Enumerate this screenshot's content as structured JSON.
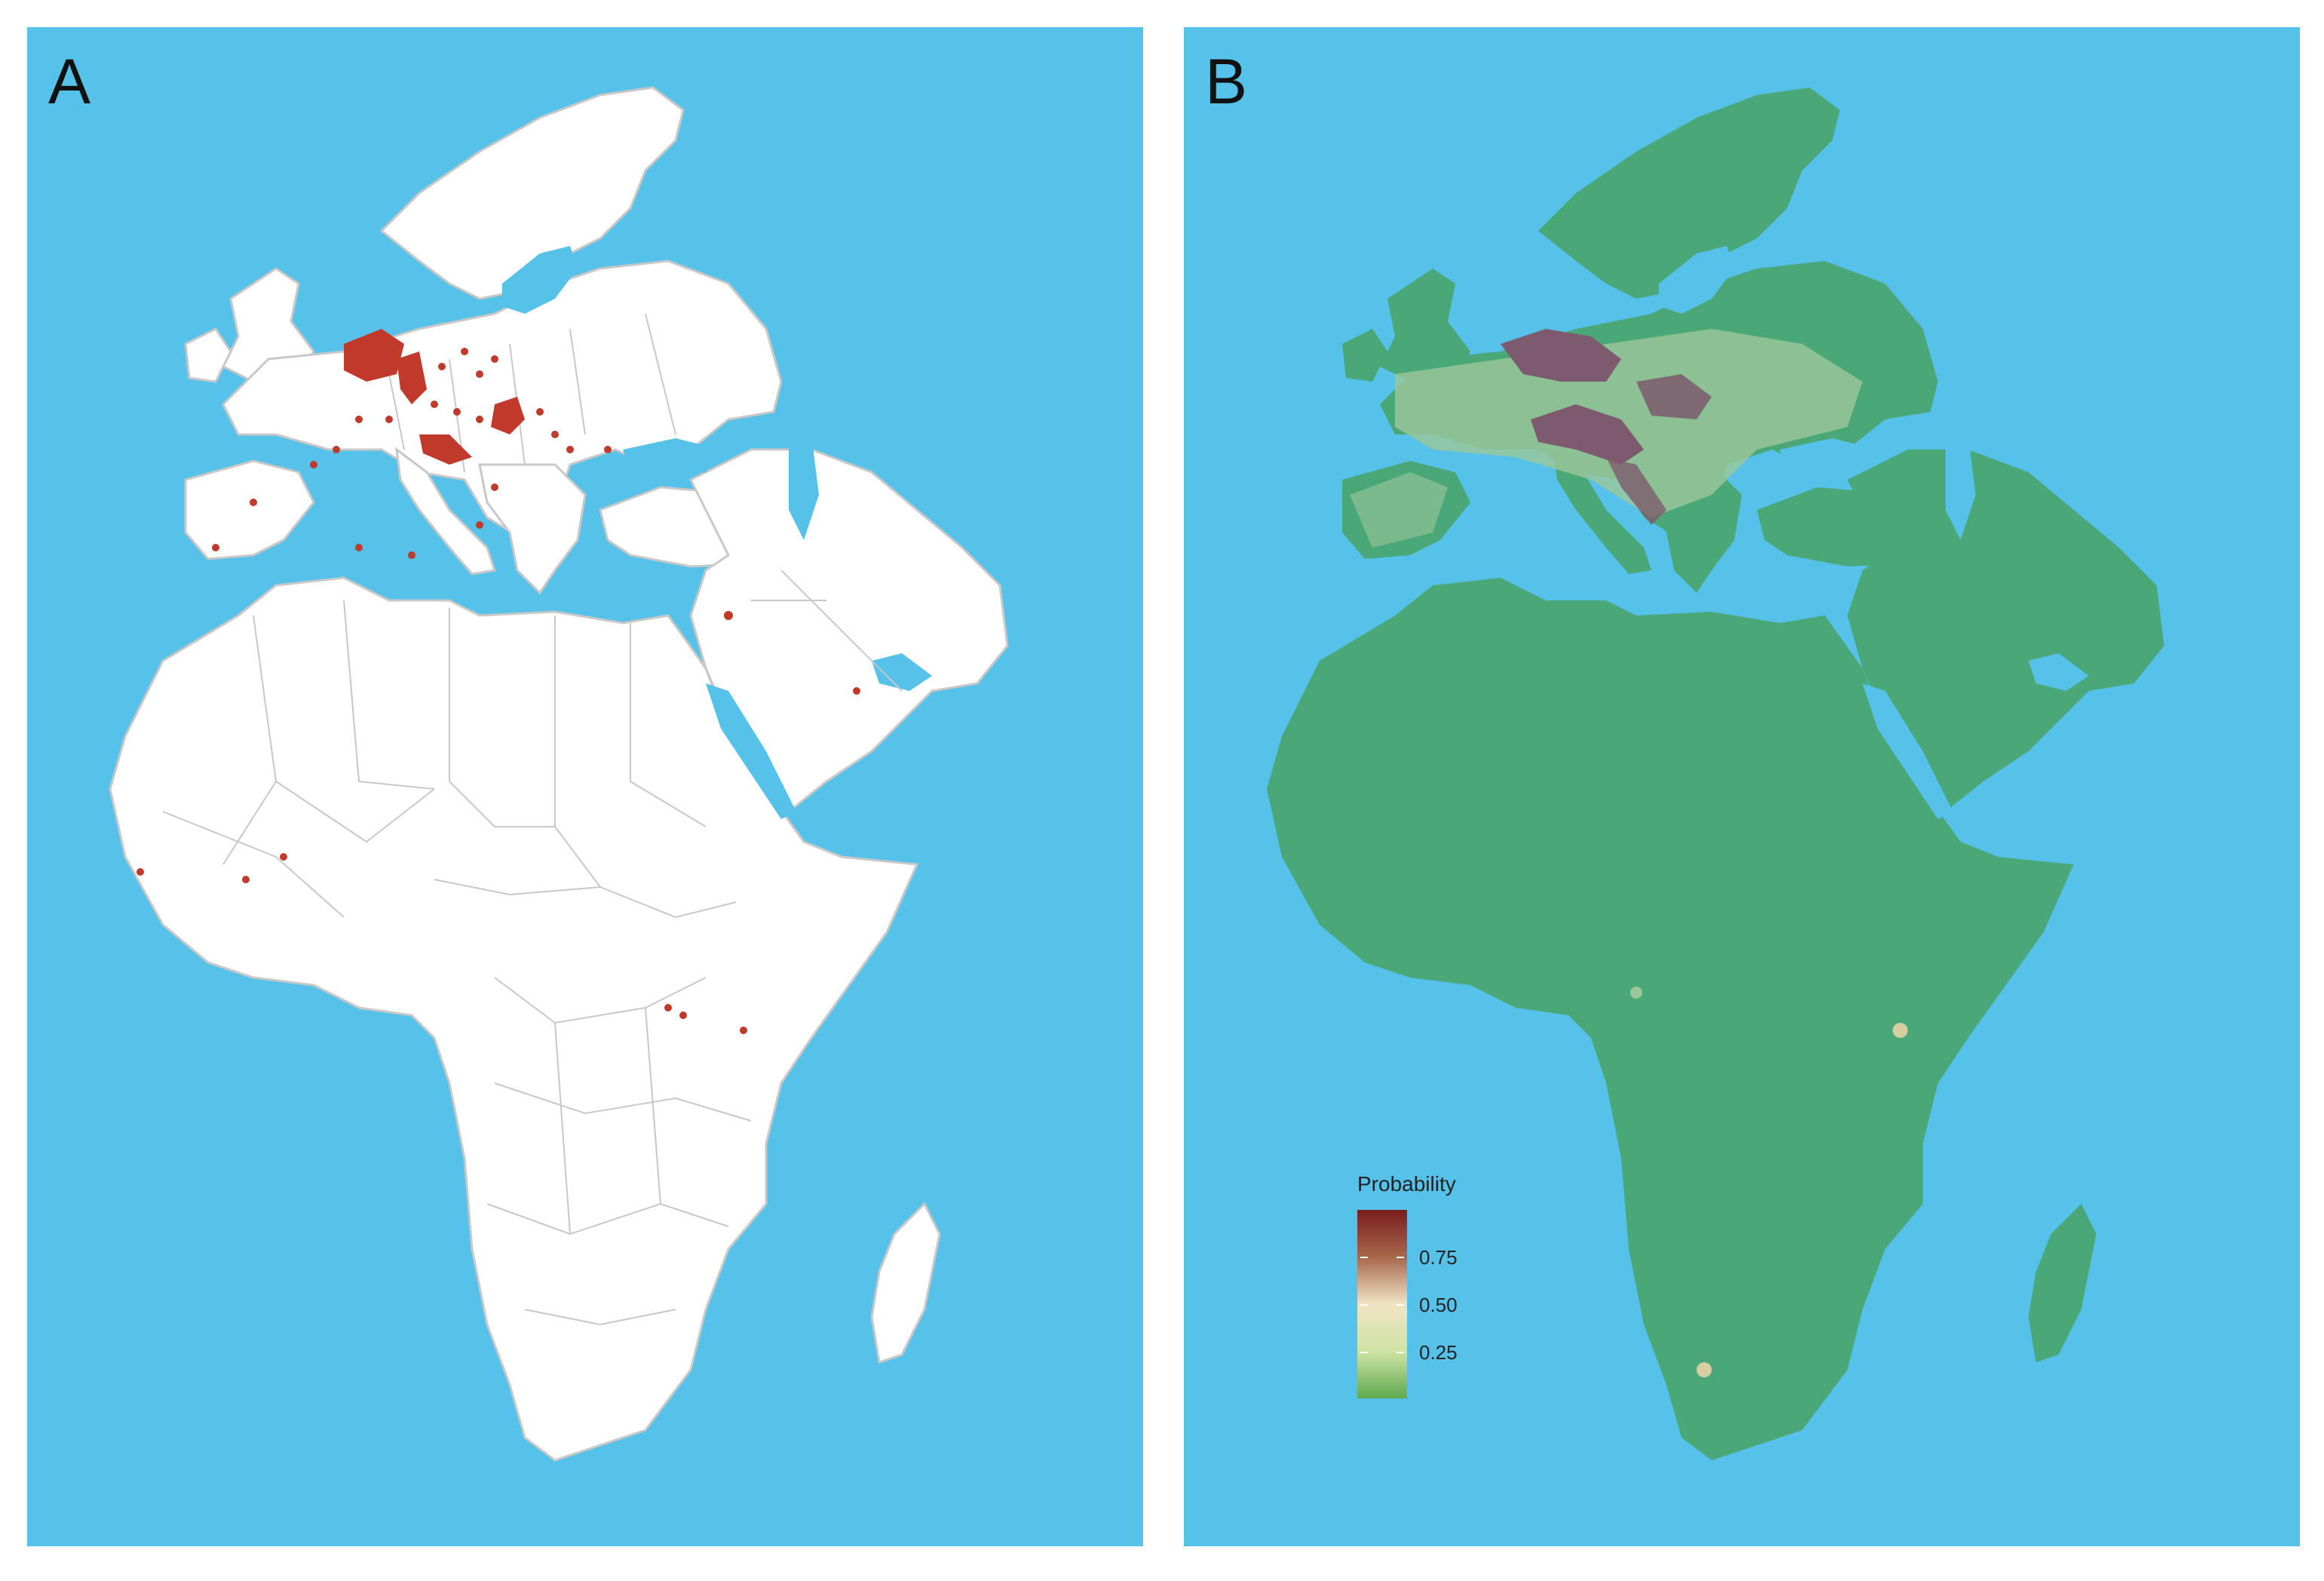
{
  "panels": [
    {
      "letter": "A"
    },
    {
      "letter": "B"
    }
  ],
  "legend": {
    "title": "Probability",
    "ticks": [
      "0.75",
      "0.50",
      "0.25"
    ]
  },
  "colors": {
    "ocean": "#56c1e9",
    "land_a": "#ffffff",
    "borders": "#c8c8c8",
    "occurrence": "#c0392b",
    "land_b": "#4aa878",
    "high_probability": "#7d5a6e",
    "mid_probability": "#9cc79a"
  }
}
